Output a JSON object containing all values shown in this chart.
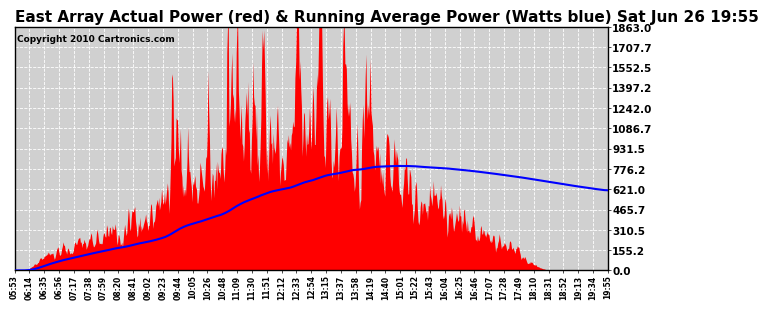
{
  "title": "East Array Actual Power (red) & Running Average Power (Watts blue) Sat Jun 26 19:55",
  "copyright": "Copyright 2010 Cartronics.com",
  "ytick_values": [
    0.0,
    155.2,
    310.5,
    465.7,
    621.0,
    776.2,
    931.5,
    1086.7,
    1242.0,
    1397.2,
    1552.5,
    1707.7,
    1863.0
  ],
  "ymax": 1863.0,
  "ymin": 0.0,
  "fig_bg_color": "#ffffff",
  "plot_bg_color": "#d0d0d0",
  "actual_color": "#ff0000",
  "avg_color": "#0000ff",
  "title_font_size": 11,
  "copyright_font_size": 6.5,
  "xtick_labels": [
    "05:53",
    "06:14",
    "06:35",
    "06:56",
    "07:17",
    "07:38",
    "07:59",
    "08:20",
    "08:41",
    "09:02",
    "09:23",
    "09:44",
    "10:05",
    "10:26",
    "10:48",
    "11:09",
    "11:30",
    "11:51",
    "12:12",
    "12:33",
    "12:54",
    "13:15",
    "13:37",
    "13:58",
    "14:19",
    "14:40",
    "15:01",
    "15:22",
    "15:43",
    "16:04",
    "16:25",
    "16:46",
    "17:07",
    "17:28",
    "17:49",
    "18:10",
    "18:31",
    "18:52",
    "19:13",
    "19:34",
    "19:55"
  ]
}
